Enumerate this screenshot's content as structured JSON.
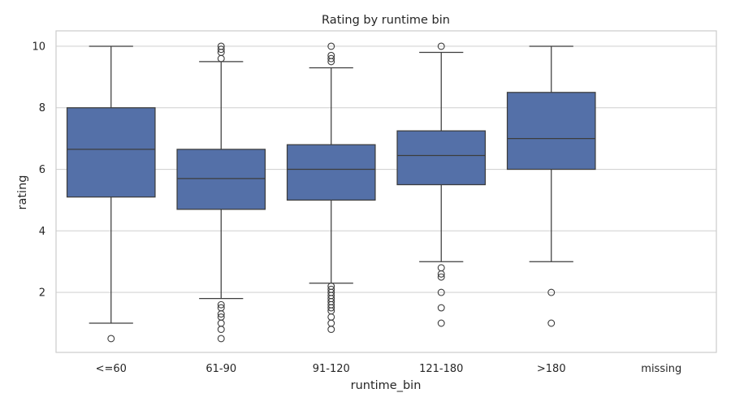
{
  "chart_data": {
    "type": "box",
    "title": "Rating by runtime bin",
    "xlabel": "runtime_bin",
    "ylabel": "rating",
    "ylim": [
      0.05,
      10.5
    ],
    "yticks": [
      2,
      4,
      6,
      8,
      10
    ],
    "grid": "horizontal",
    "box_color": "#5470a8",
    "edge_color": "#3d3d3d",
    "categories": [
      "<=60",
      "61-90",
      "91-120",
      "121-180",
      ">180",
      "missing"
    ],
    "boxes": [
      {
        "category": "<=60",
        "whisker_low": 1.0,
        "q1": 5.1,
        "median": 6.65,
        "q3": 8.0,
        "whisker_high": 10.0,
        "outliers": [
          0.5
        ]
      },
      {
        "category": "61-90",
        "whisker_low": 1.8,
        "q1": 4.7,
        "median": 5.7,
        "q3": 6.65,
        "whisker_high": 9.5,
        "outliers": [
          0.5,
          0.8,
          1.0,
          1.2,
          1.3,
          1.5,
          1.6,
          9.6,
          9.8,
          9.9,
          10.0
        ]
      },
      {
        "category": "91-120",
        "whisker_low": 2.3,
        "q1": 5.0,
        "median": 6.0,
        "q3": 6.8,
        "whisker_high": 9.3,
        "outliers": [
          0.8,
          1.0,
          1.2,
          1.4,
          1.5,
          1.6,
          1.7,
          1.8,
          1.9,
          2.0,
          2.1,
          2.2,
          9.5,
          9.6,
          9.7,
          10.0
        ]
      },
      {
        "category": "121-180",
        "whisker_low": 3.0,
        "q1": 5.5,
        "median": 6.45,
        "q3": 7.25,
        "whisker_high": 9.8,
        "outliers": [
          1.0,
          1.5,
          2.0,
          2.5,
          2.6,
          2.8,
          10.0
        ]
      },
      {
        "category": ">180",
        "whisker_low": 3.0,
        "q1": 6.0,
        "median": 7.0,
        "q3": 8.5,
        "whisker_high": 10.0,
        "outliers": [
          1.0,
          2.0
        ]
      },
      {
        "category": "missing",
        "empty": true
      }
    ]
  }
}
